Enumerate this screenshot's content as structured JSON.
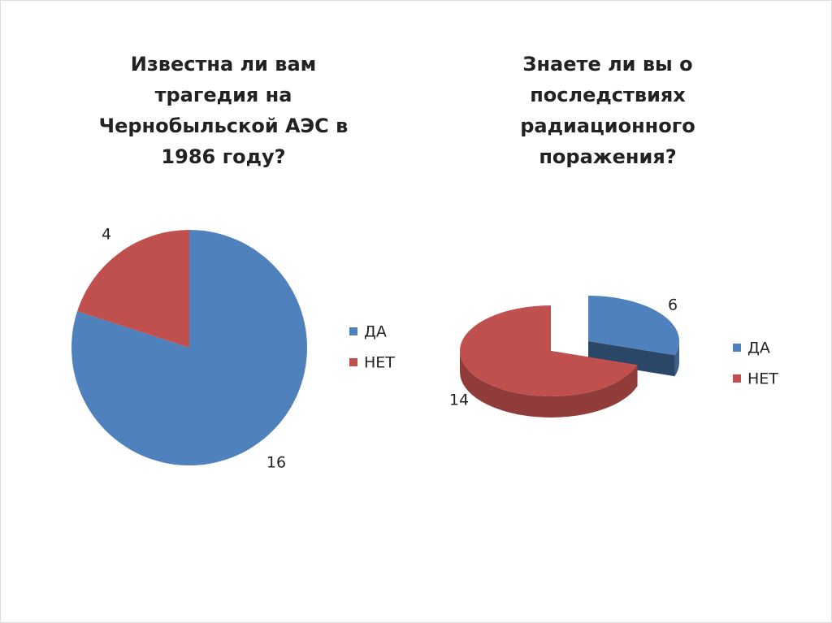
{
  "chart_data": [
    {
      "type": "pie",
      "title": "Известна ли вам трагедия на Чернобыльской АЭС в 1986 году?",
      "categories": [
        "ДА",
        "НЕТ"
      ],
      "values": [
        16,
        4
      ],
      "colors": [
        "#4f81bd",
        "#c0504d"
      ]
    },
    {
      "type": "pie",
      "three_d": true,
      "exploded": "ДА",
      "title": "Знаете ли вы о последствиях радиационного поражения?",
      "categories": [
        "ДА",
        "НЕТ"
      ],
      "values": [
        6,
        14
      ],
      "colors": [
        "#4f81bd",
        "#c0504d"
      ]
    }
  ]
}
